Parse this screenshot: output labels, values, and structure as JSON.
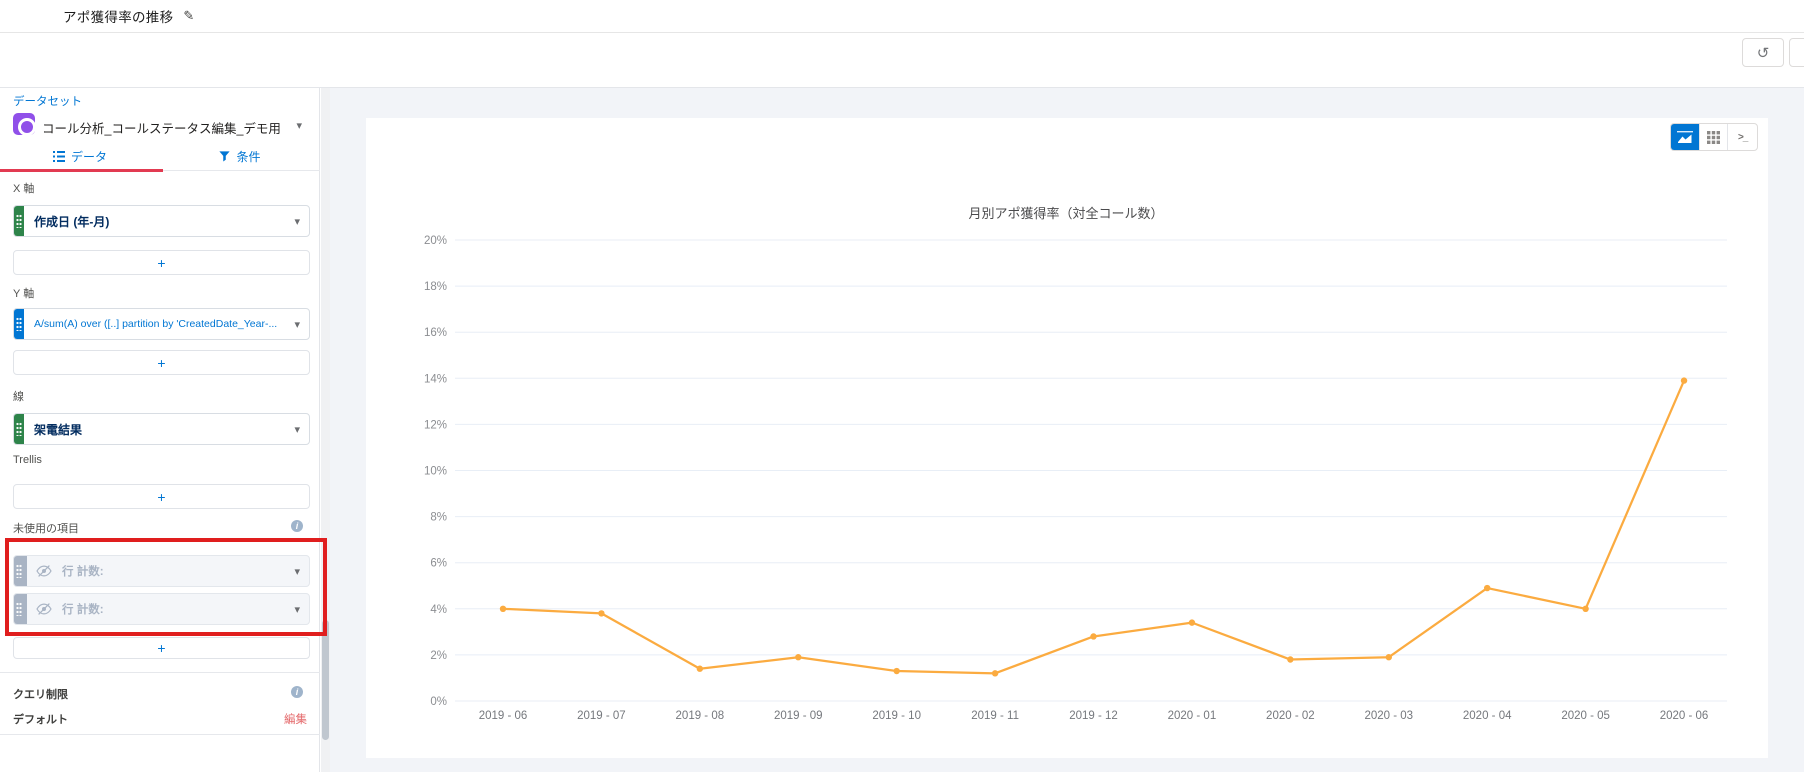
{
  "window": {
    "title": "アポ獲得率の推移"
  },
  "icons": {
    "edit_pencil": "✎",
    "undo": "↺",
    "redo": "↻",
    "caret_down": "▾",
    "plus": "+",
    "info": "i"
  },
  "sidebar": {
    "dataset_label": "データセット",
    "dataset_name": "コール分析_コールステータス編集_デモ用",
    "tabs": [
      {
        "label": "データ"
      },
      {
        "label": "条件"
      }
    ],
    "x_axis_label": "X 軸",
    "x_field": "作成日 (年-月)",
    "y_axis_label": "Y 軸",
    "y_field": "A/sum(A) over ([..] partition by 'CreatedDate_Year-...",
    "line_label": "線",
    "line_field": "架電結果",
    "trellis_label": "Trellis",
    "unused_label": "未使用の項目",
    "unused_fields": [
      "行 計数:",
      "行 計数:"
    ],
    "query_limit_label": "クエリ制限",
    "default_label": "デフォルト",
    "edit_link": "編集"
  },
  "annotation": {
    "type": "highlight-box",
    "color": "#e01e1e"
  },
  "chart_data": {
    "type": "line",
    "title": "月別アポ獲得率（対全コール数）",
    "categories": [
      "2019 - 06",
      "2019 - 07",
      "2019 - 08",
      "2019 - 09",
      "2019 - 10",
      "2019 - 11",
      "2019 - 12",
      "2020 - 01",
      "2020 - 02",
      "2020 - 03",
      "2020 - 04",
      "2020 - 05",
      "2020 - 06"
    ],
    "values": [
      4.0,
      3.8,
      1.4,
      1.9,
      1.3,
      1.2,
      2.8,
      3.4,
      1.8,
      1.9,
      4.9,
      4.0,
      13.9
    ],
    "ylim": [
      0,
      20
    ],
    "ytick_step": 2,
    "ytick_suffix": "%",
    "grid": true,
    "legend": "none",
    "line_color": "#fbab40"
  }
}
